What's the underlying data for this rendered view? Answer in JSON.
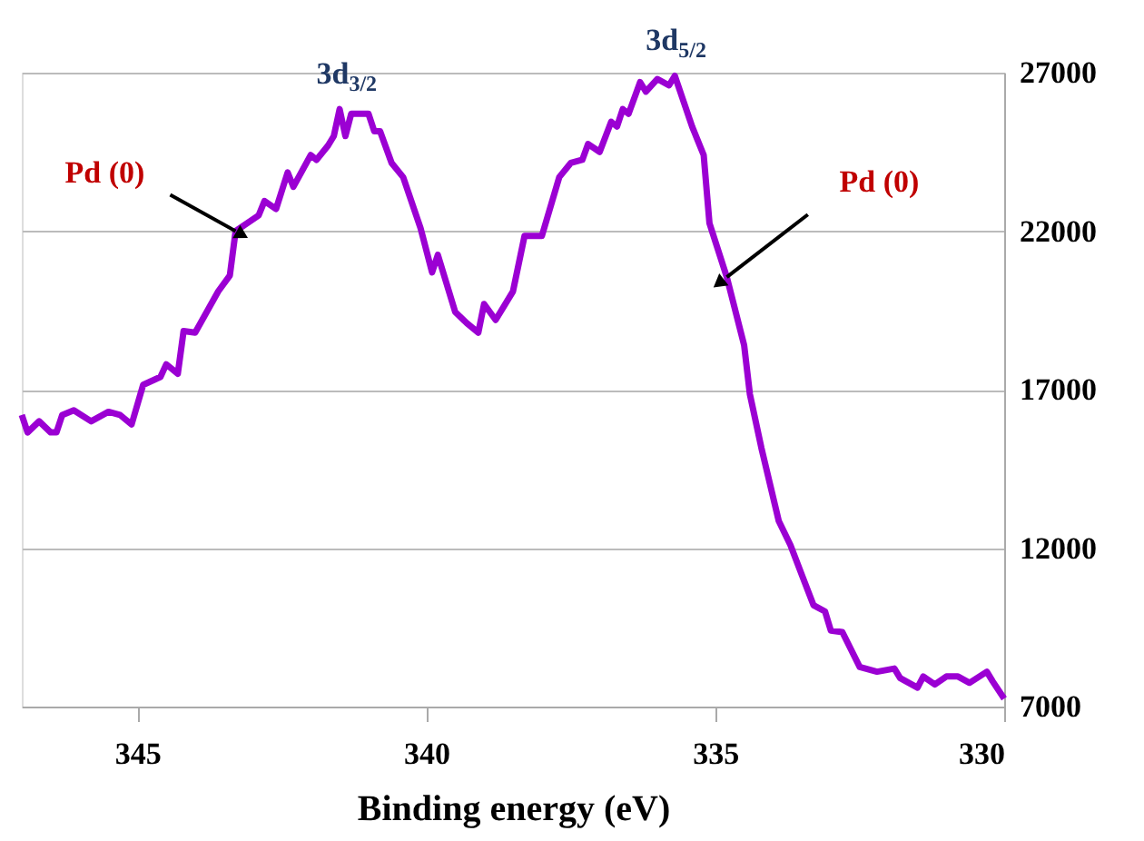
{
  "chart_data": {
    "type": "line",
    "xlabel": "Binding energy (eV)",
    "x": [
      347.0,
      346.9,
      346.7,
      346.5,
      346.4,
      346.3,
      346.1,
      345.8,
      345.5,
      345.3,
      345.1,
      344.9,
      344.6,
      344.5,
      344.3,
      344.2,
      344.0,
      343.8,
      343.6,
      343.4,
      343.3,
      342.9,
      342.8,
      342.6,
      342.4,
      342.3,
      342.0,
      341.9,
      341.7,
      341.6,
      341.5,
      341.4,
      341.3,
      341.0,
      340.9,
      340.8,
      340.6,
      340.4,
      340.1,
      339.9,
      339.8,
      339.5,
      339.3,
      339.1,
      339.0,
      338.8,
      338.5,
      338.3,
      338.0,
      337.7,
      337.5,
      337.3,
      337.2,
      337.0,
      336.8,
      336.7,
      336.6,
      336.5,
      336.3,
      336.2,
      336.0,
      335.8,
      335.7,
      335.4,
      335.2,
      335.1,
      334.8,
      334.5,
      334.4,
      334.2,
      333.9,
      333.7,
      333.5,
      333.3,
      333.1,
      333.0,
      332.8,
      332.5,
      332.2,
      331.9,
      331.8,
      331.5,
      331.4,
      331.2,
      331.0,
      330.8,
      330.6,
      330.3,
      330.2,
      330.0
    ],
    "series": [
      {
        "color": "#9b00d3",
        "values": [
          16200,
          15650,
          16000,
          15650,
          15650,
          16200,
          16350,
          16000,
          16300,
          16200,
          15900,
          17150,
          17400,
          17800,
          17500,
          18850,
          18800,
          19450,
          20100,
          20600,
          22000,
          22500,
          22950,
          22700,
          23850,
          23400,
          24400,
          24250,
          24700,
          25000,
          25850,
          25000,
          25700,
          25700,
          25150,
          25150,
          24150,
          23700,
          22100,
          20700,
          21250,
          19450,
          19100,
          18800,
          19700,
          19200,
          20100,
          21850,
          21850,
          23700,
          24150,
          24250,
          24750,
          24500,
          25450,
          25300,
          25850,
          25700,
          26700,
          26400,
          26800,
          26600,
          26900,
          25300,
          24400,
          22250,
          20550,
          18400,
          16850,
          15150,
          12850,
          12100,
          11150,
          10200,
          10000,
          9400,
          9350,
          8250,
          8100,
          8200,
          7900,
          7600,
          7950,
          7700,
          7950,
          7950,
          7750,
          8100,
          7800,
          7250
        ]
      }
    ],
    "xlim": [
      347,
      330
    ],
    "xticks": [
      345,
      340,
      335,
      330
    ],
    "ylim": [
      7000,
      27000
    ],
    "yticks": [
      7000,
      12000,
      17000,
      22000,
      27000
    ],
    "grid": "y",
    "line_style": "solid",
    "marker": "none",
    "annotations": [
      {
        "text": "Pd (0)",
        "x": 343.3,
        "y": 22000
      },
      {
        "text": "Pd (0)",
        "x": 334.8,
        "y": 20550
      },
      {
        "text": "3d$_{3/2}$",
        "x": 341.4,
        "y": 25850
      },
      {
        "text": "3d$_{5/2}$",
        "x": 335.7,
        "y": 26900
      }
    ]
  }
}
